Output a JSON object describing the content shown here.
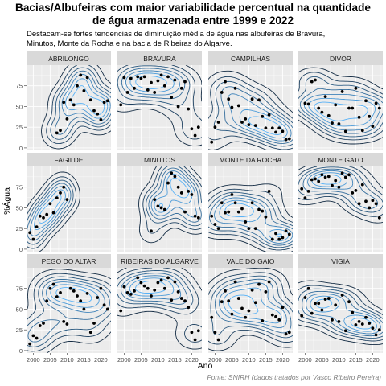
{
  "title": "Bacias/Albufeiras com maior variabilidade percentual na quantidade\nde água armazenada entre 1999 e 2022",
  "subtitle": "Destacam-se fortes tendencias de diminuição média de água nas albufeiras de Bravura,\n Minutos, Monte da Rocha e na bacia de Ribeiras do Algarve.",
  "caption": "Fonte: SNIRH (dados tratados por Vasco Ribeiro Pereira)",
  "colors": {
    "panel_bg": "#ebebeb",
    "strip_bg": "#d9d9d9",
    "grid": "#ffffff",
    "point": "#000000",
    "contour_low": "#132b43",
    "contour_high": "#56b1f7"
  },
  "chart_data": {
    "type": "scatter",
    "geom": "scatter with 2d density contours",
    "xlabel": "Ano",
    "ylabel": "%Água",
    "xlim": [
      1998,
      2023
    ],
    "ylim": [
      -3,
      100
    ],
    "x_ticks": [
      2000,
      2005,
      2010,
      2015,
      2020
    ],
    "y_ticks": [
      0,
      25,
      50,
      75
    ],
    "grid": true,
    "facets": [
      {
        "name": "ABRILONGO",
        "points": [
          [
            2007,
            18
          ],
          [
            2008,
            21
          ],
          [
            2009,
            55
          ],
          [
            2010,
            35
          ],
          [
            2011,
            58
          ],
          [
            2012,
            52
          ],
          [
            2013,
            75
          ],
          [
            2014,
            88
          ],
          [
            2015,
            69
          ],
          [
            2016,
            85
          ],
          [
            2017,
            58
          ],
          [
            2018,
            45
          ],
          [
            2019,
            41
          ],
          [
            2020,
            34
          ],
          [
            2021,
            55
          ],
          [
            2022,
            57
          ]
        ]
      },
      {
        "name": "BRAVURA",
        "points": [
          [
            1999,
            52
          ],
          [
            2000,
            85
          ],
          [
            2001,
            67
          ],
          [
            2002,
            84
          ],
          [
            2003,
            72
          ],
          [
            2004,
            86
          ],
          [
            2005,
            84
          ],
          [
            2006,
            86
          ],
          [
            2007,
            70
          ],
          [
            2008,
            79
          ],
          [
            2009,
            67
          ],
          [
            2010,
            81
          ],
          [
            2011,
            88
          ],
          [
            2012,
            75
          ],
          [
            2013,
            86
          ],
          [
            2014,
            61
          ],
          [
            2015,
            82
          ],
          [
            2016,
            50
          ],
          [
            2017,
            72
          ],
          [
            2018,
            80
          ],
          [
            2019,
            47
          ],
          [
            2020,
            23
          ],
          [
            2021,
            15
          ],
          [
            2022,
            25
          ]
        ]
      },
      {
        "name": "CAMPILHAS",
        "points": [
          [
            1999,
            7
          ],
          [
            2000,
            25
          ],
          [
            2001,
            31
          ],
          [
            2002,
            67
          ],
          [
            2003,
            80
          ],
          [
            2004,
            59
          ],
          [
            2005,
            49
          ],
          [
            2006,
            72
          ],
          [
            2007,
            51
          ],
          [
            2008,
            31
          ],
          [
            2009,
            35
          ],
          [
            2010,
            28
          ],
          [
            2011,
            59
          ],
          [
            2012,
            27
          ],
          [
            2013,
            58
          ],
          [
            2014,
            38
          ],
          [
            2015,
            24
          ],
          [
            2016,
            40
          ],
          [
            2017,
            24
          ],
          [
            2018,
            19
          ],
          [
            2019,
            24
          ],
          [
            2020,
            20
          ],
          [
            2021,
            10
          ],
          [
            2022,
            11
          ]
        ]
      },
      {
        "name": "DIVOR",
        "points": [
          [
            2000,
            54
          ],
          [
            2001,
            53
          ],
          [
            2002,
            80
          ],
          [
            2003,
            82
          ],
          [
            2004,
            48
          ],
          [
            2005,
            43
          ],
          [
            2006,
            62
          ],
          [
            2007,
            39
          ],
          [
            2008,
            30
          ],
          [
            2009,
            52
          ],
          [
            2010,
            29
          ],
          [
            2011,
            68
          ],
          [
            2012,
            20
          ],
          [
            2013,
            48
          ],
          [
            2014,
            48
          ],
          [
            2015,
            72
          ],
          [
            2016,
            37
          ],
          [
            2017,
            21
          ],
          [
            2018,
            57
          ],
          [
            2019,
            38
          ],
          [
            2020,
            26
          ],
          [
            2021,
            54
          ],
          [
            2022,
            48
          ]
        ]
      },
      {
        "name": "FAGILDE",
        "points": [
          [
            1999,
            20
          ],
          [
            2000,
            12
          ],
          [
            2001,
            27
          ],
          [
            2002,
            40
          ],
          [
            2003,
            38
          ],
          [
            2004,
            42
          ],
          [
            2005,
            55
          ],
          [
            2006,
            44
          ],
          [
            2007,
            62
          ],
          [
            2008,
            68
          ],
          [
            2009,
            75
          ],
          [
            2010,
            60
          ]
        ]
      },
      {
        "name": "MINUTOS",
        "points": [
          [
            2008,
            22
          ],
          [
            2009,
            60
          ],
          [
            2010,
            52
          ],
          [
            2011,
            50
          ],
          [
            2012,
            48
          ],
          [
            2013,
            80
          ],
          [
            2014,
            92
          ],
          [
            2015,
            88
          ],
          [
            2016,
            75
          ],
          [
            2017,
            68
          ],
          [
            2018,
            45
          ],
          [
            2019,
            70
          ],
          [
            2020,
            66
          ],
          [
            2021,
            40
          ],
          [
            2022,
            38
          ]
        ]
      },
      {
        "name": "MONTE DA ROCHA",
        "points": [
          [
            1999,
            40
          ],
          [
            2000,
            30
          ],
          [
            2001,
            25
          ],
          [
            2002,
            56
          ],
          [
            2003,
            44
          ],
          [
            2004,
            45
          ],
          [
            2005,
            66
          ],
          [
            2006,
            56
          ],
          [
            2007,
            45
          ],
          [
            2008,
            49
          ],
          [
            2009,
            33
          ],
          [
            2010,
            25
          ],
          [
            2011,
            56
          ],
          [
            2012,
            25
          ],
          [
            2013,
            48
          ],
          [
            2014,
            46
          ],
          [
            2015,
            39
          ],
          [
            2016,
            70
          ],
          [
            2017,
            12
          ],
          [
            2018,
            19
          ],
          [
            2019,
            12
          ],
          [
            2020,
            14
          ],
          [
            2021,
            22
          ],
          [
            2022,
            18
          ]
        ]
      },
      {
        "name": "MONTE GATO",
        "points": [
          [
            1999,
            73
          ],
          [
            2000,
            62
          ],
          [
            2001,
            70
          ],
          [
            2002,
            84
          ],
          [
            2003,
            85
          ],
          [
            2004,
            82
          ],
          [
            2005,
            90
          ],
          [
            2006,
            87
          ],
          [
            2007,
            88
          ],
          [
            2008,
            77
          ],
          [
            2009,
            83
          ],
          [
            2010,
            75
          ],
          [
            2011,
            92
          ],
          [
            2012,
            87
          ],
          [
            2013,
            90
          ],
          [
            2014,
            68
          ],
          [
            2015,
            71
          ],
          [
            2016,
            55
          ],
          [
            2017,
            78
          ],
          [
            2018,
            58
          ],
          [
            2019,
            50
          ],
          [
            2020,
            59
          ],
          [
            2021,
            55
          ],
          [
            2022,
            38
          ]
        ]
      },
      {
        "name": "PEGO DO ALTAR",
        "points": [
          [
            1999,
            8
          ],
          [
            2000,
            18
          ],
          [
            2001,
            15
          ],
          [
            2002,
            30
          ],
          [
            2003,
            33
          ],
          [
            2004,
            60
          ],
          [
            2005,
            75
          ],
          [
            2006,
            80
          ],
          [
            2007,
            65
          ],
          [
            2008,
            70
          ],
          [
            2009,
            35
          ],
          [
            2010,
            32
          ],
          [
            2011,
            75
          ],
          [
            2012,
            72
          ],
          [
            2013,
            66
          ],
          [
            2014,
            60
          ],
          [
            2015,
            50
          ],
          [
            2016,
            69
          ],
          [
            2017,
            22
          ],
          [
            2018,
            33
          ],
          [
            2019,
            64
          ],
          [
            2020,
            75
          ],
          [
            2021,
            55
          ],
          [
            2022,
            50
          ]
        ]
      },
      {
        "name": "RIBEIRAS DO ALGARVE",
        "points": [
          [
            1999,
            48
          ],
          [
            2000,
            77
          ],
          [
            2001,
            70
          ],
          [
            2002,
            68
          ],
          [
            2003,
            72
          ],
          [
            2004,
            88
          ],
          [
            2005,
            82
          ],
          [
            2006,
            78
          ],
          [
            2007,
            75
          ],
          [
            2008,
            66
          ],
          [
            2009,
            73
          ],
          [
            2010,
            82
          ],
          [
            2011,
            85
          ],
          [
            2012,
            75
          ],
          [
            2013,
            88
          ],
          [
            2014,
            61
          ],
          [
            2015,
            83
          ],
          [
            2016,
            71
          ],
          [
            2017,
            63
          ],
          [
            2018,
            60
          ],
          [
            2019,
            52
          ],
          [
            2020,
            22
          ],
          [
            2021,
            13
          ],
          [
            2022,
            24
          ]
        ]
      },
      {
        "name": "VALE DO GAIO",
        "points": [
          [
            1999,
            40
          ],
          [
            2000,
            22
          ],
          [
            2001,
            13
          ],
          [
            2002,
            59
          ],
          [
            2003,
            72
          ],
          [
            2004,
            60
          ],
          [
            2005,
            44
          ],
          [
            2006,
            83
          ],
          [
            2007,
            63
          ],
          [
            2008,
            51
          ],
          [
            2009,
            40
          ],
          [
            2010,
            48
          ],
          [
            2011,
            73
          ],
          [
            2012,
            58
          ],
          [
            2013,
            80
          ],
          [
            2014,
            36
          ],
          [
            2015,
            71
          ],
          [
            2016,
            83
          ],
          [
            2017,
            43
          ],
          [
            2018,
            41
          ],
          [
            2019,
            37
          ],
          [
            2020,
            52
          ],
          [
            2021,
            20
          ],
          [
            2022,
            22
          ]
        ]
      },
      {
        "name": "VIGIA",
        "points": [
          [
            1999,
            42
          ],
          [
            2000,
            64
          ],
          [
            2001,
            75
          ],
          [
            2002,
            45
          ],
          [
            2003,
            57
          ],
          [
            2004,
            57
          ],
          [
            2005,
            49
          ],
          [
            2006,
            62
          ],
          [
            2007,
            63
          ],
          [
            2008,
            37
          ],
          [
            2009,
            55
          ],
          [
            2010,
            35
          ],
          [
            2011,
            67
          ],
          [
            2012,
            24
          ],
          [
            2013,
            59
          ],
          [
            2014,
            46
          ],
          [
            2015,
            31
          ],
          [
            2016,
            35
          ],
          [
            2017,
            32
          ],
          [
            2018,
            40
          ],
          [
            2019,
            33
          ],
          [
            2020,
            27
          ],
          [
            2021,
            19
          ],
          [
            2022,
            25
          ]
        ]
      }
    ]
  }
}
